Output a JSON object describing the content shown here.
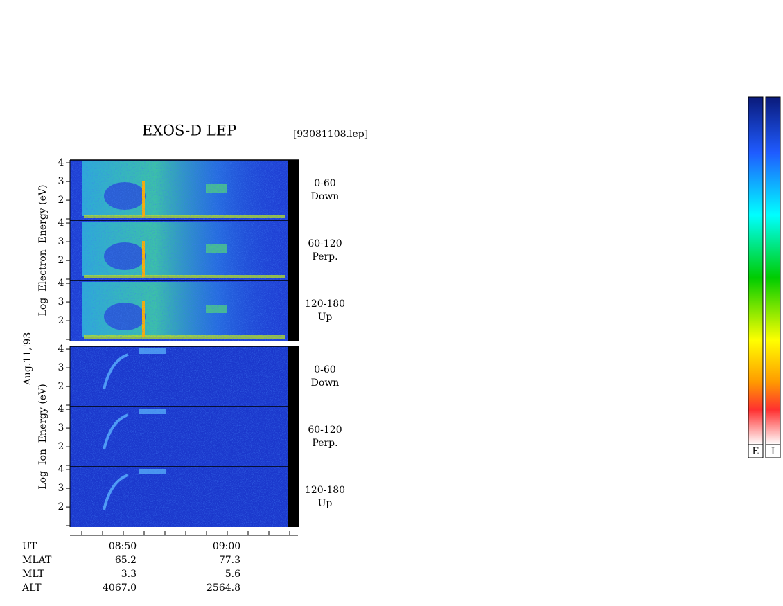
{
  "chart_data": {
    "type": "spectrogram",
    "title": "EXOS-D LEP",
    "file_label": "[93081108.lep]",
    "date_label": "Aug.11,'93",
    "ylim": [
      0.93,
      4.15
    ],
    "yticks": [
      2,
      3,
      4
    ],
    "groups": [
      {
        "ylabel": "Log  Electron  Energy (eV)",
        "panels": [
          {
            "range": "0-60",
            "direction": "Down"
          },
          {
            "range": "60-120",
            "direction": "Perp."
          },
          {
            "range": "120-180",
            "direction": "Up"
          }
        ]
      },
      {
        "ylabel": "Log  Ion  Energy (eV)",
        "panels": [
          {
            "range": "0-60",
            "direction": "Down"
          },
          {
            "range": "60-120",
            "direction": "Perp."
          },
          {
            "range": "120-180",
            "direction": "Up"
          }
        ]
      }
    ],
    "orbit_table": {
      "row_labels": [
        "UT",
        "MLAT",
        "MLT",
        "ALT"
      ],
      "columns": [
        [
          "08:50",
          "65.2",
          "3.3",
          "4067.0"
        ],
        [
          "09:00",
          "77.3",
          "5.6",
          "2564.8"
        ]
      ]
    },
    "colorbar_labels": [
      "E",
      "I"
    ]
  }
}
